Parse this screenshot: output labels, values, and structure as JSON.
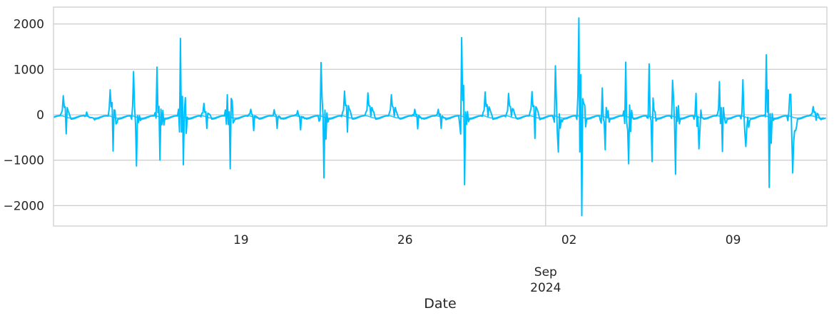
{
  "chart_data": {
    "type": "line",
    "title": "",
    "xlabel": "Date",
    "ylabel": "",
    "grid": true,
    "legend": "none",
    "line_color": "#00BFFF",
    "x_range": [
      "2024-08-11",
      "2024-09-13"
    ],
    "ylim": [
      -2450,
      2370
    ],
    "y_ticks": [
      2000,
      1000,
      0,
      -1000,
      -2000
    ],
    "y_tick_labels": [
      "2000",
      "1000",
      "0",
      "−1000",
      "−2000"
    ],
    "x_major_gridline": "2024-09-01",
    "x_ticks": [
      {
        "date": "2024-08-19",
        "label": "19"
      },
      {
        "date": "2024-08-26",
        "label": "26"
      },
      {
        "date": "2024-09-02",
        "label": "02"
      },
      {
        "date": "2024-09-09",
        "label": "09"
      }
    ],
    "x_major_label": {
      "date": "2024-09-01",
      "lines": [
        "Sep",
        "2024"
      ]
    },
    "series": [
      {
        "values": [
          {
            "date": "2024-08-11",
            "peak": 420,
            "trough": -420
          },
          {
            "date": "2024-08-12",
            "peak": 60,
            "trough": -60
          },
          {
            "date": "2024-08-13",
            "peak": 550,
            "trough": -800
          },
          {
            "date": "2024-08-14",
            "peak": 950,
            "trough": -1130
          },
          {
            "date": "2024-08-15",
            "peak": 1050,
            "trough": -1000
          },
          {
            "date": "2024-08-16",
            "peak": 1680,
            "trough": -1100
          },
          {
            "date": "2024-08-17",
            "peak": 250,
            "trough": -300
          },
          {
            "date": "2024-08-18",
            "peak": 440,
            "trough": -1190
          },
          {
            "date": "2024-08-19",
            "peak": 120,
            "trough": -350
          },
          {
            "date": "2024-08-20",
            "peak": 110,
            "trough": -300
          },
          {
            "date": "2024-08-21",
            "peak": 90,
            "trough": -330
          },
          {
            "date": "2024-08-22",
            "peak": 1150,
            "trough": -1390
          },
          {
            "date": "2024-08-23",
            "peak": 520,
            "trough": -380
          },
          {
            "date": "2024-08-24",
            "peak": 480,
            "trough": -30
          },
          {
            "date": "2024-08-25",
            "peak": 440,
            "trough": -30
          },
          {
            "date": "2024-08-26",
            "peak": 120,
            "trough": -310
          },
          {
            "date": "2024-08-27",
            "peak": 120,
            "trough": -300
          },
          {
            "date": "2024-08-28",
            "peak": 1700,
            "trough": -1540
          },
          {
            "date": "2024-08-29",
            "peak": 500,
            "trough": -30
          },
          {
            "date": "2024-08-30",
            "peak": 470,
            "trough": -30
          },
          {
            "date": "2024-08-31",
            "peak": 510,
            "trough": -520
          },
          {
            "date": "2024-09-01",
            "peak": 1080,
            "trough": -820
          },
          {
            "date": "2024-09-02",
            "peak": 2130,
            "trough": -2220
          },
          {
            "date": "2024-09-03",
            "peak": 590,
            "trough": -770
          },
          {
            "date": "2024-09-04",
            "peak": 1160,
            "trough": -1080
          },
          {
            "date": "2024-09-05",
            "peak": 1120,
            "trough": -1030
          },
          {
            "date": "2024-09-06",
            "peak": 760,
            "trough": -1310
          },
          {
            "date": "2024-09-07",
            "peak": 470,
            "trough": -750
          },
          {
            "date": "2024-09-08",
            "peak": 730,
            "trough": -810
          },
          {
            "date": "2024-09-09",
            "peak": 770,
            "trough": -700
          },
          {
            "date": "2024-09-10",
            "peak": 1320,
            "trough": -1600
          },
          {
            "date": "2024-09-11",
            "peak": 450,
            "trough": -1280
          },
          {
            "date": "2024-09-12",
            "peak": 180,
            "trough": -120
          }
        ]
      }
    ]
  }
}
